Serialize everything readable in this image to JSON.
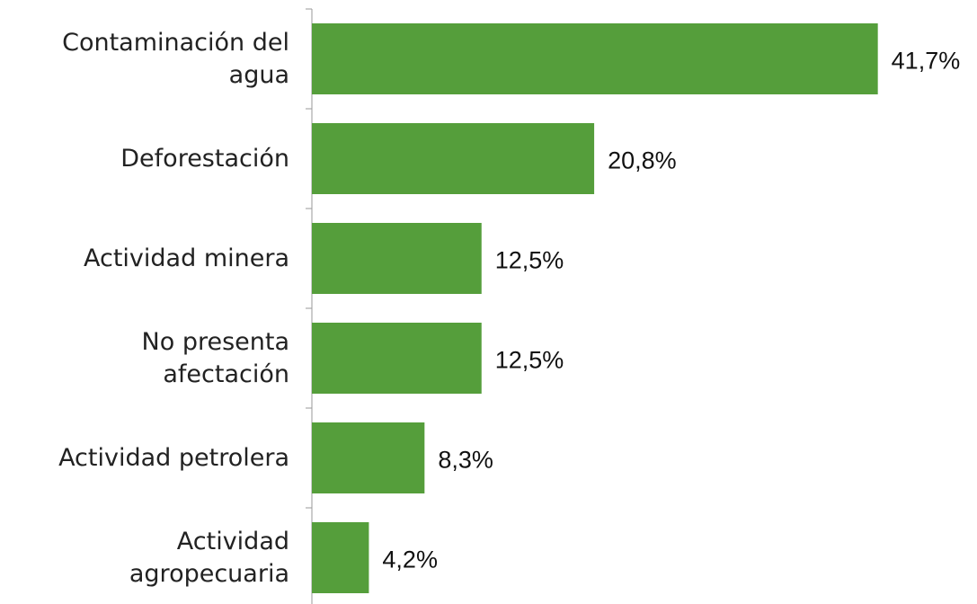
{
  "chart_data": {
    "type": "bar",
    "orientation": "horizontal",
    "categories": [
      "Contaminación del\nagua",
      "Deforestación",
      "Actividad minera",
      "No presenta\nafectación",
      "Actividad petrolera",
      "Actividad\nagropecuaria"
    ],
    "values": [
      41.7,
      20.8,
      12.5,
      12.5,
      8.3,
      4.2
    ],
    "value_labels": [
      "41,7%",
      "20,8%",
      "12,5%",
      "12,5%",
      "8,3%",
      "4,2%"
    ],
    "color": "#559e3b"
  }
}
